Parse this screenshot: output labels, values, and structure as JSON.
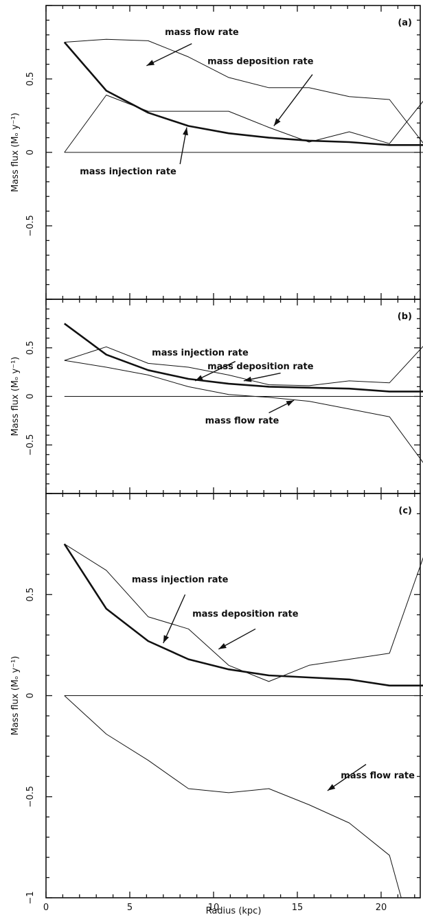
{
  "figure": {
    "xlabel": "Radius (kpc)",
    "ylabel": "Mass flux (Mₒ y⁻¹)"
  },
  "chart_data": [
    {
      "type": "line",
      "panel": "(a)",
      "xlabel": "",
      "ylabel": "Mass flux (Mₒ y⁻¹)",
      "xlim": [
        0,
        23
      ],
      "ylim": [
        -1,
        1
      ],
      "yticks": [
        0.5,
        0,
        -0.5
      ],
      "ytick_labels": [
        "0.5",
        "0",
        "−0.5"
      ],
      "series": [
        {
          "name": "mass injection rate",
          "weight": "bold",
          "x": [
            1.1,
            3.6,
            6.1,
            8.5,
            10.9,
            13.3,
            15.7,
            18.1,
            20.5,
            22.8
          ],
          "y": [
            0.75,
            0.42,
            0.27,
            0.18,
            0.13,
            0.1,
            0.08,
            0.07,
            0.05,
            0.05
          ]
        },
        {
          "name": "mass deposition rate",
          "weight": "thin",
          "x": [
            1.1,
            3.6,
            6.1,
            8.5,
            10.9,
            13.3,
            15.7,
            18.1,
            20.5,
            22.8
          ],
          "y": [
            0.0,
            0.39,
            0.28,
            0.28,
            0.28,
            0.17,
            0.07,
            0.14,
            0.06,
            0.39
          ]
        },
        {
          "name": "mass flow rate",
          "weight": "thin",
          "x": [
            1.1,
            3.6,
            6.1,
            8.5,
            10.9,
            13.3,
            15.7,
            18.1,
            20.5,
            22.8
          ],
          "y": [
            0.75,
            0.77,
            0.76,
            0.65,
            0.51,
            0.44,
            0.44,
            0.38,
            0.36,
            0.02
          ]
        },
        {
          "name": "zero",
          "weight": "thin",
          "x": [
            1.1,
            22.8
          ],
          "y": [
            0,
            0
          ]
        }
      ],
      "annotations": [
        {
          "text": "mass flow rate",
          "at_x": 6.0,
          "at_y": 0.59,
          "text_x": 9.3,
          "text_y": 0.8,
          "arrow_from": [
            8.7,
            0.74
          ]
        },
        {
          "text": "mass deposition rate",
          "at_x": 13.6,
          "at_y": 0.18,
          "text_x": 12.8,
          "text_y": 0.6,
          "arrow_from": [
            15.9,
            0.53
          ]
        },
        {
          "text": "mass injection rate",
          "at_x": 8.4,
          "at_y": 0.17,
          "text_x": 4.9,
          "text_y": -0.15,
          "arrow_from": [
            8.0,
            -0.08
          ]
        }
      ]
    },
    {
      "type": "line",
      "panel": "(b)",
      "xlabel": "",
      "ylabel": "Mass flux (Mₒ y⁻¹)",
      "xlim": [
        0,
        23
      ],
      "ylim": [
        -1,
        1
      ],
      "yticks": [
        0.5,
        0,
        -0.5
      ],
      "ytick_labels": [
        "0.5",
        "0",
        "−0.5"
      ],
      "series": [
        {
          "name": "mass injection rate",
          "weight": "bold",
          "x": [
            1.1,
            3.6,
            6.1,
            8.5,
            10.9,
            13.3,
            15.7,
            18.1,
            20.5,
            22.8
          ],
          "y": [
            0.75,
            0.43,
            0.27,
            0.18,
            0.13,
            0.1,
            0.09,
            0.08,
            0.05,
            0.05
          ]
        },
        {
          "name": "mass deposition rate",
          "weight": "thin",
          "x": [
            1.1,
            3.6,
            6.1,
            8.5,
            10.9,
            13.3,
            15.7,
            18.1,
            20.5,
            22.8
          ],
          "y": [
            0.37,
            0.51,
            0.34,
            0.3,
            0.22,
            0.12,
            0.11,
            0.16,
            0.14,
            0.57
          ]
        },
        {
          "name": "mass flow rate",
          "weight": "thin",
          "x": [
            1.1,
            3.6,
            6.1,
            8.5,
            10.9,
            13.3,
            15.7,
            18.1,
            20.5,
            22.8
          ],
          "y": [
            0.37,
            0.3,
            0.22,
            0.1,
            0.02,
            -0.01,
            -0.05,
            -0.13,
            -0.21,
            -0.75
          ]
        },
        {
          "name": "zero",
          "weight": "thin",
          "x": [
            1.1,
            22.8
          ],
          "y": [
            0,
            0
          ]
        }
      ],
      "annotations": [
        {
          "text": "mass injection rate",
          "at_x": 8.9,
          "at_y": 0.16,
          "text_x": 9.2,
          "text_y": 0.42,
          "arrow_from": [
            11.3,
            0.36
          ]
        },
        {
          "text": "mass deposition rate",
          "at_x": 11.8,
          "at_y": 0.16,
          "text_x": 12.8,
          "text_y": 0.28,
          "arrow_from": [
            14.0,
            0.24
          ]
        },
        {
          "text": "mass flow rate",
          "at_x": 14.8,
          "at_y": -0.04,
          "text_x": 11.7,
          "text_y": -0.28,
          "arrow_from": [
            13.3,
            -0.17
          ]
        }
      ]
    },
    {
      "type": "line",
      "panel": "(c)",
      "xlabel": "Radius (kpc)",
      "ylabel": "Mass flux (Mₒ y⁻¹)",
      "xlim": [
        0,
        23
      ],
      "ylim": [
        -1,
        1
      ],
      "xticks": [
        0,
        5,
        10,
        15,
        20
      ],
      "xtick_labels": [
        "0",
        "5",
        "10",
        "15",
        "20"
      ],
      "yticks": [
        0.5,
        0,
        -0.5,
        -1
      ],
      "ytick_labels": [
        "0.5",
        "0",
        "−0.5",
        "−1"
      ],
      "series": [
        {
          "name": "mass injection rate",
          "weight": "bold",
          "x": [
            1.1,
            3.6,
            6.1,
            8.5,
            10.9,
            13.3,
            15.7,
            18.1,
            20.5,
            22.8
          ],
          "y": [
            0.75,
            0.43,
            0.27,
            0.18,
            0.13,
            0.1,
            0.09,
            0.08,
            0.05,
            0.05
          ]
        },
        {
          "name": "mass deposition rate",
          "weight": "thin",
          "x": [
            1.1,
            3.6,
            6.1,
            8.5,
            10.9,
            13.3,
            15.7,
            18.1,
            20.5,
            22.8
          ],
          "y": [
            0.75,
            0.62,
            0.39,
            0.33,
            0.15,
            0.07,
            0.15,
            0.18,
            0.21,
            0.75
          ]
        },
        {
          "name": "mass flow rate",
          "weight": "thin",
          "x": [
            1.1,
            3.6,
            6.1,
            8.5,
            10.9,
            13.3,
            15.7,
            18.1,
            20.5,
            21.2
          ],
          "y": [
            0.0,
            -0.19,
            -0.32,
            -0.46,
            -0.48,
            -0.46,
            -0.54,
            -0.63,
            -0.79,
            -1.0
          ]
        },
        {
          "name": "zero",
          "weight": "thin",
          "x": [
            1.1,
            22.8
          ],
          "y": [
            0,
            0
          ]
        }
      ],
      "annotations": [
        {
          "text": "mass injection rate",
          "at_x": 7.0,
          "at_y": 0.26,
          "text_x": 8.0,
          "text_y": 0.56,
          "arrow_from": [
            8.3,
            0.5
          ]
        },
        {
          "text": "mass deposition rate",
          "at_x": 10.3,
          "at_y": 0.23,
          "text_x": 11.9,
          "text_y": 0.39,
          "arrow_from": [
            12.5,
            0.33
          ]
        },
        {
          "text": "mass flow rate",
          "at_x": 16.8,
          "at_y": -0.47,
          "text_x": 19.8,
          "text_y": -0.41,
          "arrow_from": [
            19.1,
            -0.34
          ]
        }
      ]
    }
  ]
}
